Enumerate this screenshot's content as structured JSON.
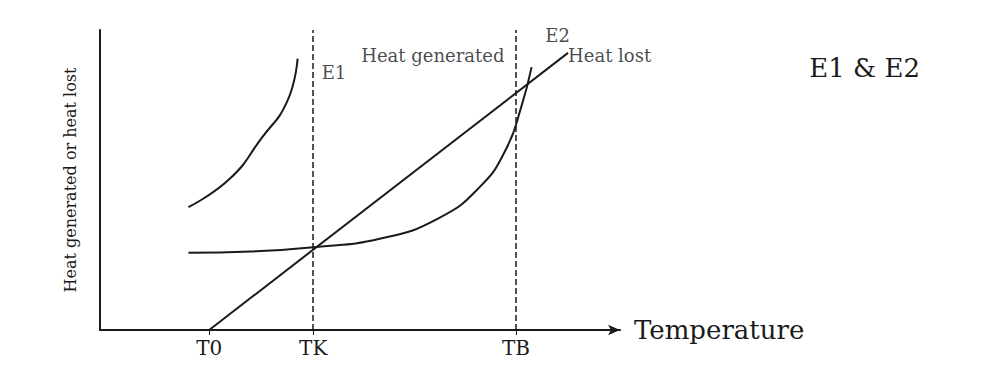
{
  "chart_data": {
    "type": "line",
    "subtitle": "E1 & E2",
    "x_label": "Temperature",
    "y_label": "Heat generated or heat lost",
    "xlim": [
      0,
      10
    ],
    "ylim": [
      0,
      10.5
    ],
    "xticks": [
      {
        "value": 2.1,
        "label": "T0"
      },
      {
        "value": 4.1,
        "label": "TK"
      },
      {
        "value": 8.0,
        "label": "TB"
      }
    ],
    "yticks": [],
    "tick_labels": "x",
    "grid": false,
    "series": [
      {
        "name": "E1",
        "color": "#1a1a1a",
        "line_style": "solid",
        "x": [
          1.7,
          2.5,
          3.1,
          3.6,
          3.8
        ],
        "values": [
          4.3,
          5.3,
          6.7,
          8.0,
          9.5
        ]
      },
      {
        "name": "E2",
        "color": "#1a1a1a",
        "line_style": "solid",
        "x": [
          1.7,
          2.9,
          4.1,
          5.4,
          6.5,
          7.3,
          7.8,
          8.1,
          8.3
        ],
        "values": [
          2.7,
          2.75,
          2.9,
          3.2,
          3.9,
          5.0,
          6.3,
          7.8,
          9.2
        ]
      },
      {
        "name": "Heat lost",
        "color": "#1a1a1a",
        "line_style": "solid",
        "x": [
          2.1,
          9.0
        ],
        "values": [
          0,
          9.7
        ]
      }
    ],
    "annotations": [
      {
        "text": "E1",
        "x": 4.5,
        "y": 9.0
      },
      {
        "text": "Heat generated",
        "x": 6.4,
        "y": 9.6
      },
      {
        "text": "E2",
        "x": 8.8,
        "y": 10.3
      },
      {
        "text": "Heat lost",
        "x": 9.8,
        "y": 9.6
      }
    ]
  }
}
